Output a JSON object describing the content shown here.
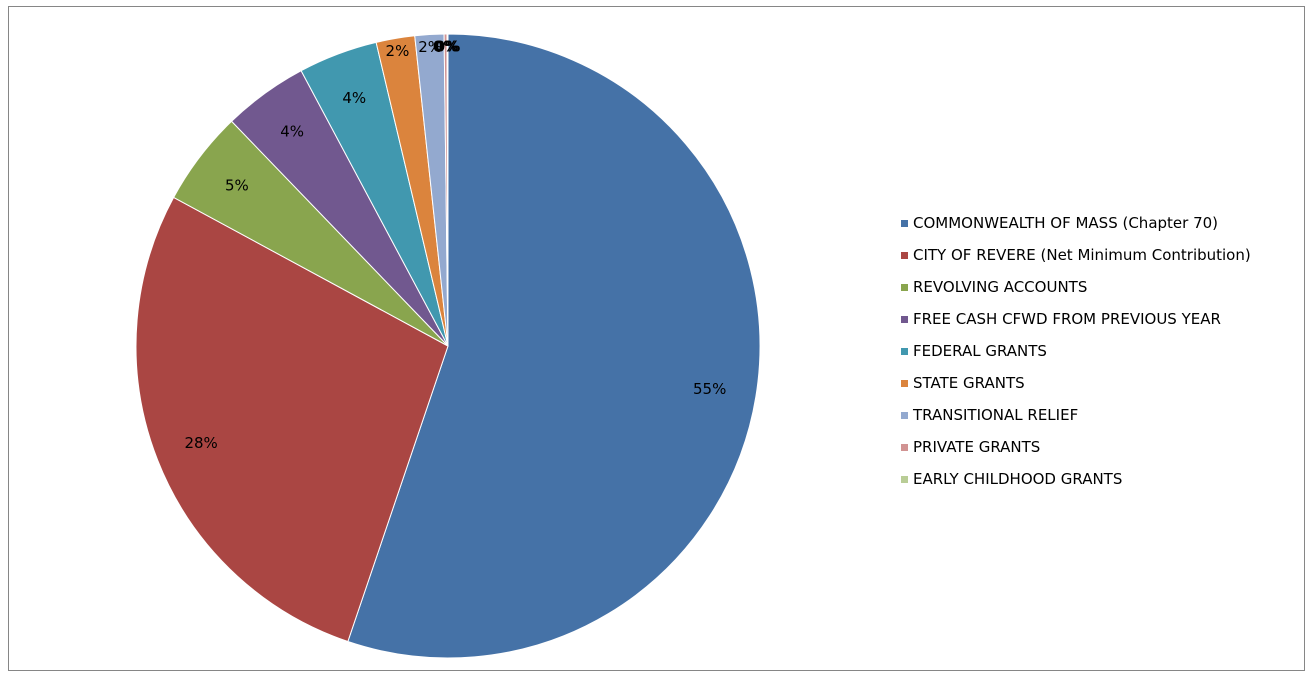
{
  "chart_data": {
    "type": "pie",
    "title": "",
    "start_angle_deg": 0,
    "direction": "clockwise",
    "legend_position": "right",
    "slices": [
      {
        "label": "COMMONWEALTH OF MASS (Chapter 70)",
        "value": 55.2,
        "display": "55%",
        "color": "#4572A7"
      },
      {
        "label": "CITY OF REVERE (Net Minimum Contribution)",
        "value": 27.7,
        "display": "28%",
        "color": "#AA4643"
      },
      {
        "label": "REVOLVING ACCOUNTS",
        "value": 4.9,
        "display": "5%",
        "color": "#89A54E"
      },
      {
        "label": "FREE CASH CFWD FROM PREVIOUS YEAR",
        "value": 4.4,
        "display": "4%",
        "color": "#71588F"
      },
      {
        "label": "FEDERAL GRANTS",
        "value": 4.1,
        "display": "4%",
        "color": "#4198AF"
      },
      {
        "label": "STATE GRANTS",
        "value": 2.0,
        "display": "2%",
        "color": "#DB843D"
      },
      {
        "label": "TRANSITIONAL RELIEF",
        "value": 1.5,
        "display": "2%",
        "color": "#93A9CF"
      },
      {
        "label": "PRIVATE GRANTS",
        "value": 0.15,
        "display": "0%",
        "color": "#D19392"
      },
      {
        "label": "EARLY CHILDHOOD GRANTS",
        "value": 0.05,
        "display": "0%",
        "color": "#B9CD96"
      }
    ]
  }
}
